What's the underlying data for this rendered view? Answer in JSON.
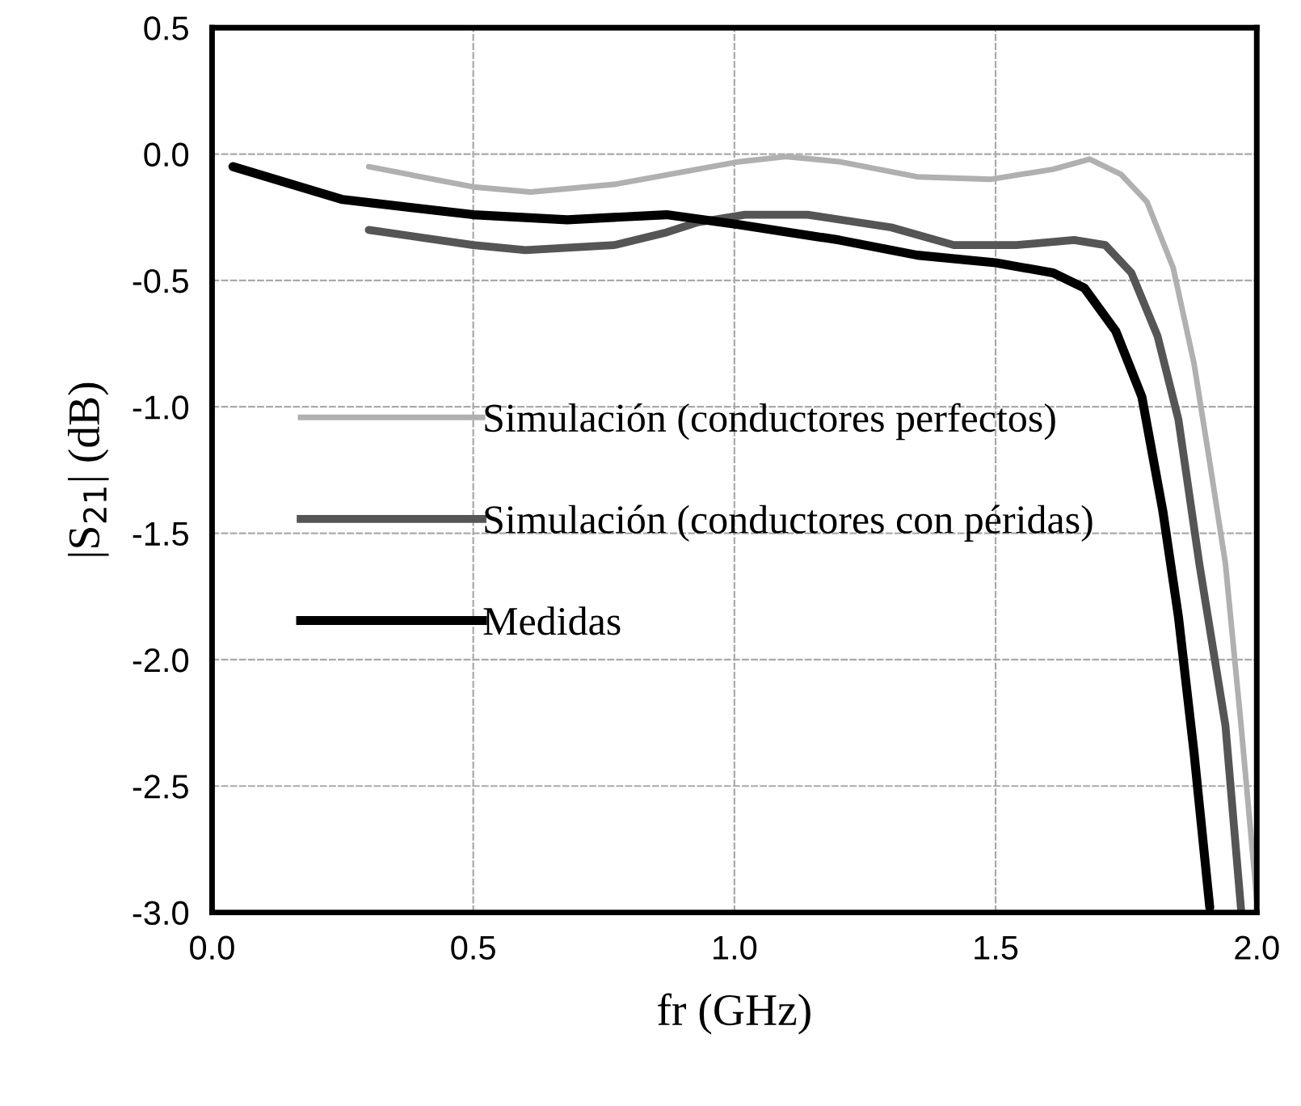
{
  "chart_data": {
    "type": "line",
    "xlabel": "fr (GHz)",
    "ylabel": "|S$_{21}$| (dB)",
    "xlim": [
      0.0,
      2.0
    ],
    "xticks": [
      {
        "value": 0,
        "label": "0.0"
      },
      0.5,
      {
        "value": 1,
        "label": "1.0"
      },
      1.5,
      {
        "value": 2,
        "label": "2.0"
      }
    ],
    "ylim": [
      -3.0,
      0.5
    ],
    "yticks": [
      {
        "value": -3,
        "label": "-3.0"
      },
      -2.5,
      {
        "value": -2,
        "label": "-2.0"
      },
      -1.5,
      {
        "value": -1,
        "label": "-1.0"
      },
      -0.5,
      {
        "value": 0,
        "label": "0.0"
      },
      0.5
    ],
    "grid": true,
    "legend": "left",
    "marker": "none",
    "line_style": "solid",
    "series": [
      {
        "name": "Simulación (conductores perfectos)",
        "color": "#b0b0b0",
        "x": [
          0.3,
          0.5,
          0.61,
          0.77,
          1.01,
          1.1,
          1.2,
          1.35,
          1.49,
          1.61,
          1.68,
          1.74,
          1.79,
          1.84,
          1.88,
          1.91,
          1.94,
          1.97,
          2.0
        ],
        "values": [
          -0.05,
          -0.13,
          -0.15,
          -0.12,
          -0.03,
          -0.01,
          -0.03,
          -0.09,
          -0.1,
          -0.06,
          -0.02,
          -0.08,
          -0.19,
          -0.45,
          -0.83,
          -1.22,
          -1.62,
          -2.26,
          -2.95
        ]
      },
      {
        "name": "Simulación (conductores con péridas)",
        "color": "#555555",
        "x": [
          0.3,
          0.5,
          0.6,
          0.77,
          0.87,
          0.93,
          1.02,
          1.14,
          1.3,
          1.42,
          1.54,
          1.65,
          1.71,
          1.76,
          1.81,
          1.85,
          1.89,
          1.94,
          1.97
        ],
        "values": [
          -0.3,
          -0.36,
          -0.38,
          -0.36,
          -0.31,
          -0.27,
          -0.24,
          -0.24,
          -0.29,
          -0.36,
          -0.36,
          -0.34,
          -0.36,
          -0.47,
          -0.72,
          -1.05,
          -1.62,
          -2.26,
          -2.99
        ]
      },
      {
        "name": "Medidas",
        "color": "#000000",
        "x": [
          0.04,
          0.25,
          0.5,
          0.68,
          0.87,
          1.01,
          1.2,
          1.35,
          1.5,
          1.61,
          1.67,
          1.73,
          1.78,
          1.82,
          1.85,
          1.88,
          1.91
        ],
        "values": [
          -0.05,
          -0.18,
          -0.24,
          -0.26,
          -0.24,
          -0.28,
          -0.34,
          -0.4,
          -0.43,
          -0.47,
          -0.53,
          -0.7,
          -0.96,
          -1.41,
          -1.83,
          -2.37,
          -2.98
        ]
      }
    ]
  }
}
